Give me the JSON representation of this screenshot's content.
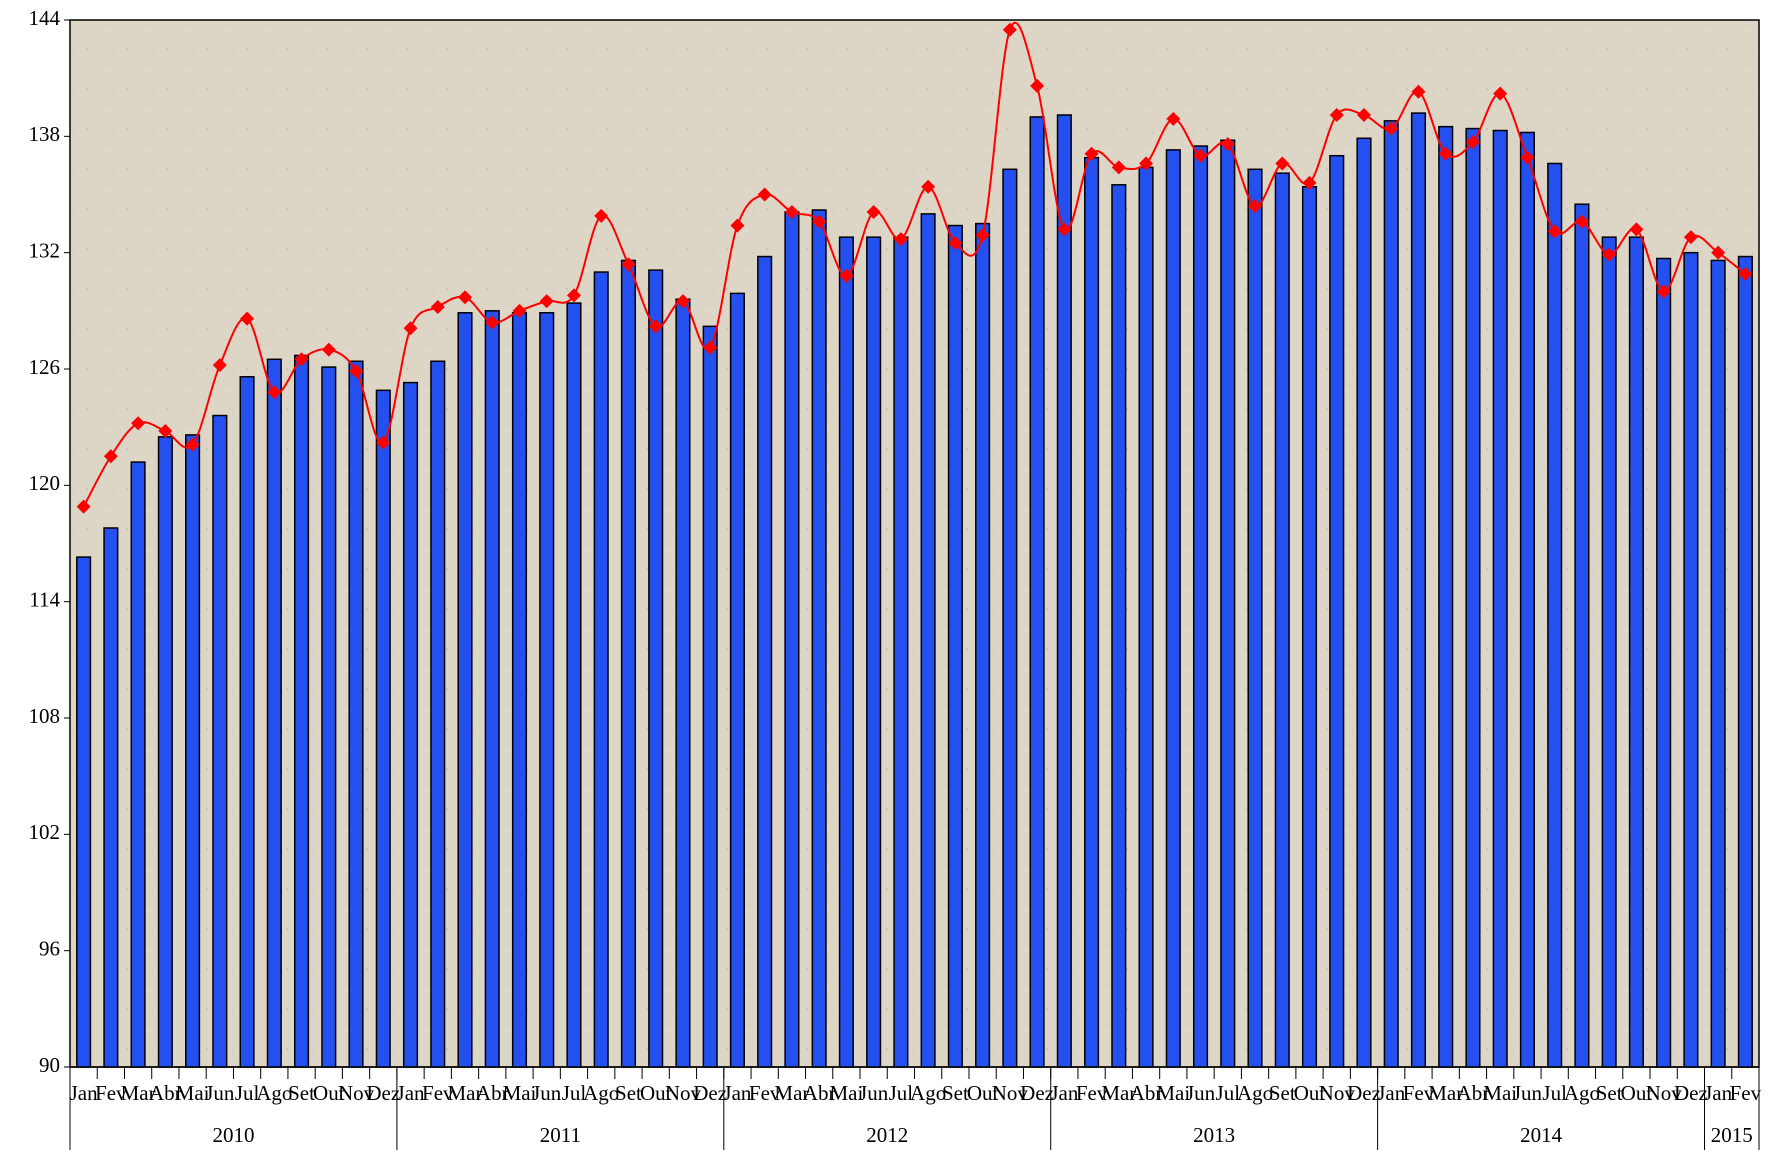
{
  "chart_data": {
    "type": "bar",
    "categories": [
      "Jan",
      "Fev",
      "Mar",
      "Abr",
      "Mai",
      "Jun",
      "Jul",
      "Ago",
      "Set",
      "Out",
      "Nov",
      "Dez",
      "Jan",
      "Fev",
      "Mar",
      "Abr",
      "Mai",
      "Jun",
      "Jul",
      "Ago",
      "Set",
      "Out",
      "Nov",
      "Dez",
      "Jan",
      "Fev",
      "Mar",
      "Abr",
      "Mai",
      "Jun",
      "Jul",
      "Ago",
      "Set",
      "Out",
      "Nov",
      "Dez",
      "Jan",
      "Fev",
      "Mar",
      "Abr",
      "Mai",
      "Jun",
      "Jul",
      "Ago",
      "Set",
      "Out",
      "Nov",
      "Dez",
      "Jan",
      "Fev",
      "Mar",
      "Abr",
      "Mai",
      "Jun",
      "Jul",
      "Ago",
      "Set",
      "Out",
      "Nov",
      "Dez",
      "Jan",
      "Fev"
    ],
    "years": [
      "2010",
      "2011",
      "2012",
      "2013",
      "2014",
      "2015"
    ],
    "series": [
      {
        "type": "bar",
        "color": "#2450f0",
        "values": [
          116.3,
          117.8,
          121.2,
          122.5,
          122.6,
          123.6,
          125.6,
          126.5,
          126.7,
          126.1,
          126.4,
          124.9,
          125.3,
          126.4,
          128.9,
          129.0,
          128.9,
          128.9,
          129.4,
          131.0,
          131.6,
          131.1,
          129.6,
          128.2,
          129.9,
          131.8,
          134.1,
          134.2,
          132.8,
          132.8,
          132.8,
          134.0,
          133.4,
          133.5,
          136.3,
          139.0,
          139.1,
          136.9,
          135.5,
          136.4,
          137.3,
          137.5,
          137.8,
          136.3,
          136.1,
          135.4,
          137.0,
          137.9,
          138.8,
          139.2,
          138.5,
          138.4,
          138.3,
          138.2,
          136.6,
          134.5,
          132.8,
          132.8,
          131.7,
          132.0,
          131.6,
          131.8
        ]
      },
      {
        "type": "line",
        "color": "#ff0000",
        "values": [
          118.9,
          121.5,
          123.2,
          122.8,
          122.1,
          126.2,
          128.6,
          124.8,
          126.5,
          127.0,
          125.9,
          122.2,
          128.1,
          129.2,
          129.7,
          128.4,
          129.0,
          129.5,
          129.8,
          133.9,
          131.4,
          128.2,
          129.5,
          127.1,
          133.4,
          135.0,
          134.1,
          133.6,
          130.8,
          134.1,
          132.7,
          135.4,
          132.5,
          132.9,
          143.5,
          140.6,
          133.2,
          137.1,
          136.4,
          136.6,
          138.9,
          137.0,
          137.6,
          134.4,
          136.6,
          135.6,
          139.1,
          139.1,
          138.4,
          140.3,
          137.1,
          137.7,
          140.2,
          136.9,
          133.1,
          133.6,
          131.9,
          133.2,
          130.0,
          132.8,
          132.0,
          130.9
        ]
      }
    ],
    "ylim": [
      90,
      144
    ],
    "yticks": [
      90,
      96,
      102,
      108,
      114,
      120,
      126,
      132,
      138,
      144
    ]
  }
}
